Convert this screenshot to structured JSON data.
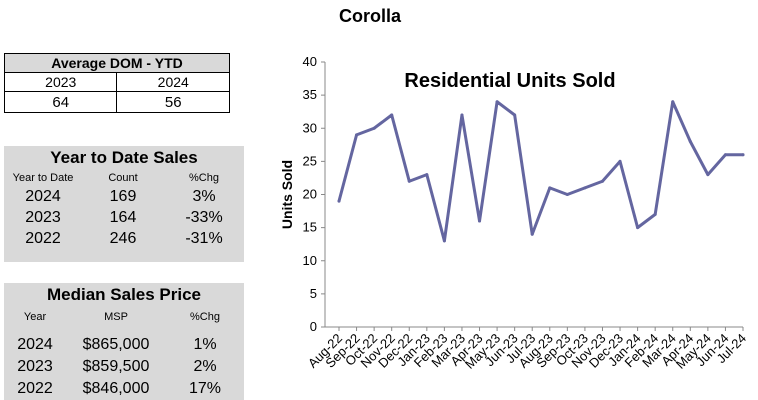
{
  "page_title": "Corolla",
  "dom": {
    "title": "Average DOM - YTD",
    "years": [
      "2023",
      "2024"
    ],
    "values": [
      "64",
      "56"
    ]
  },
  "ytd": {
    "title": "Year to Date Sales",
    "headers": [
      "Year to Date",
      "Count",
      "%Chg"
    ],
    "rows": [
      [
        "2024",
        "169",
        "3%"
      ],
      [
        "2023",
        "164",
        "-33%"
      ],
      [
        "2022",
        "246",
        "-31%"
      ]
    ]
  },
  "msp": {
    "title": "Median Sales Price",
    "headers": [
      "Year",
      "MSP",
      "%Chg"
    ],
    "rows": [
      [
        "2024",
        "$865,000",
        "1%"
      ],
      [
        "2023",
        "$859,500",
        "2%"
      ],
      [
        "2022",
        "$846,000",
        "17%"
      ]
    ]
  },
  "chart_data": {
    "type": "line",
    "title": "Residential Units Sold",
    "ylabel": "Units Sold",
    "xlabel": "",
    "ylim": [
      0,
      40
    ],
    "yticks": [
      0,
      5,
      10,
      15,
      20,
      25,
      30,
      35,
      40
    ],
    "grid": false,
    "legend": "none",
    "line_color": "#6466a0",
    "categories": [
      "Aug-22",
      "Sep-22",
      "Oct-22",
      "Nov-22",
      "Dec-22",
      "Jan-23",
      "Feb-23",
      "Mar-23",
      "Apr-23",
      "May-23",
      "Jun-23",
      "Jul-23",
      "Aug-23",
      "Sep-23",
      "Oct-23",
      "Nov-23",
      "Dec-23",
      "Jan-24",
      "Feb-24",
      "Mar-24",
      "Apr-24",
      "May-24",
      "Jun-24",
      "Jul-24"
    ],
    "values": [
      19,
      29,
      30,
      32,
      22,
      23,
      13,
      32,
      16,
      34,
      32,
      14,
      21,
      20,
      21,
      22,
      25,
      15,
      17,
      34,
      28,
      23,
      26,
      26
    ]
  }
}
